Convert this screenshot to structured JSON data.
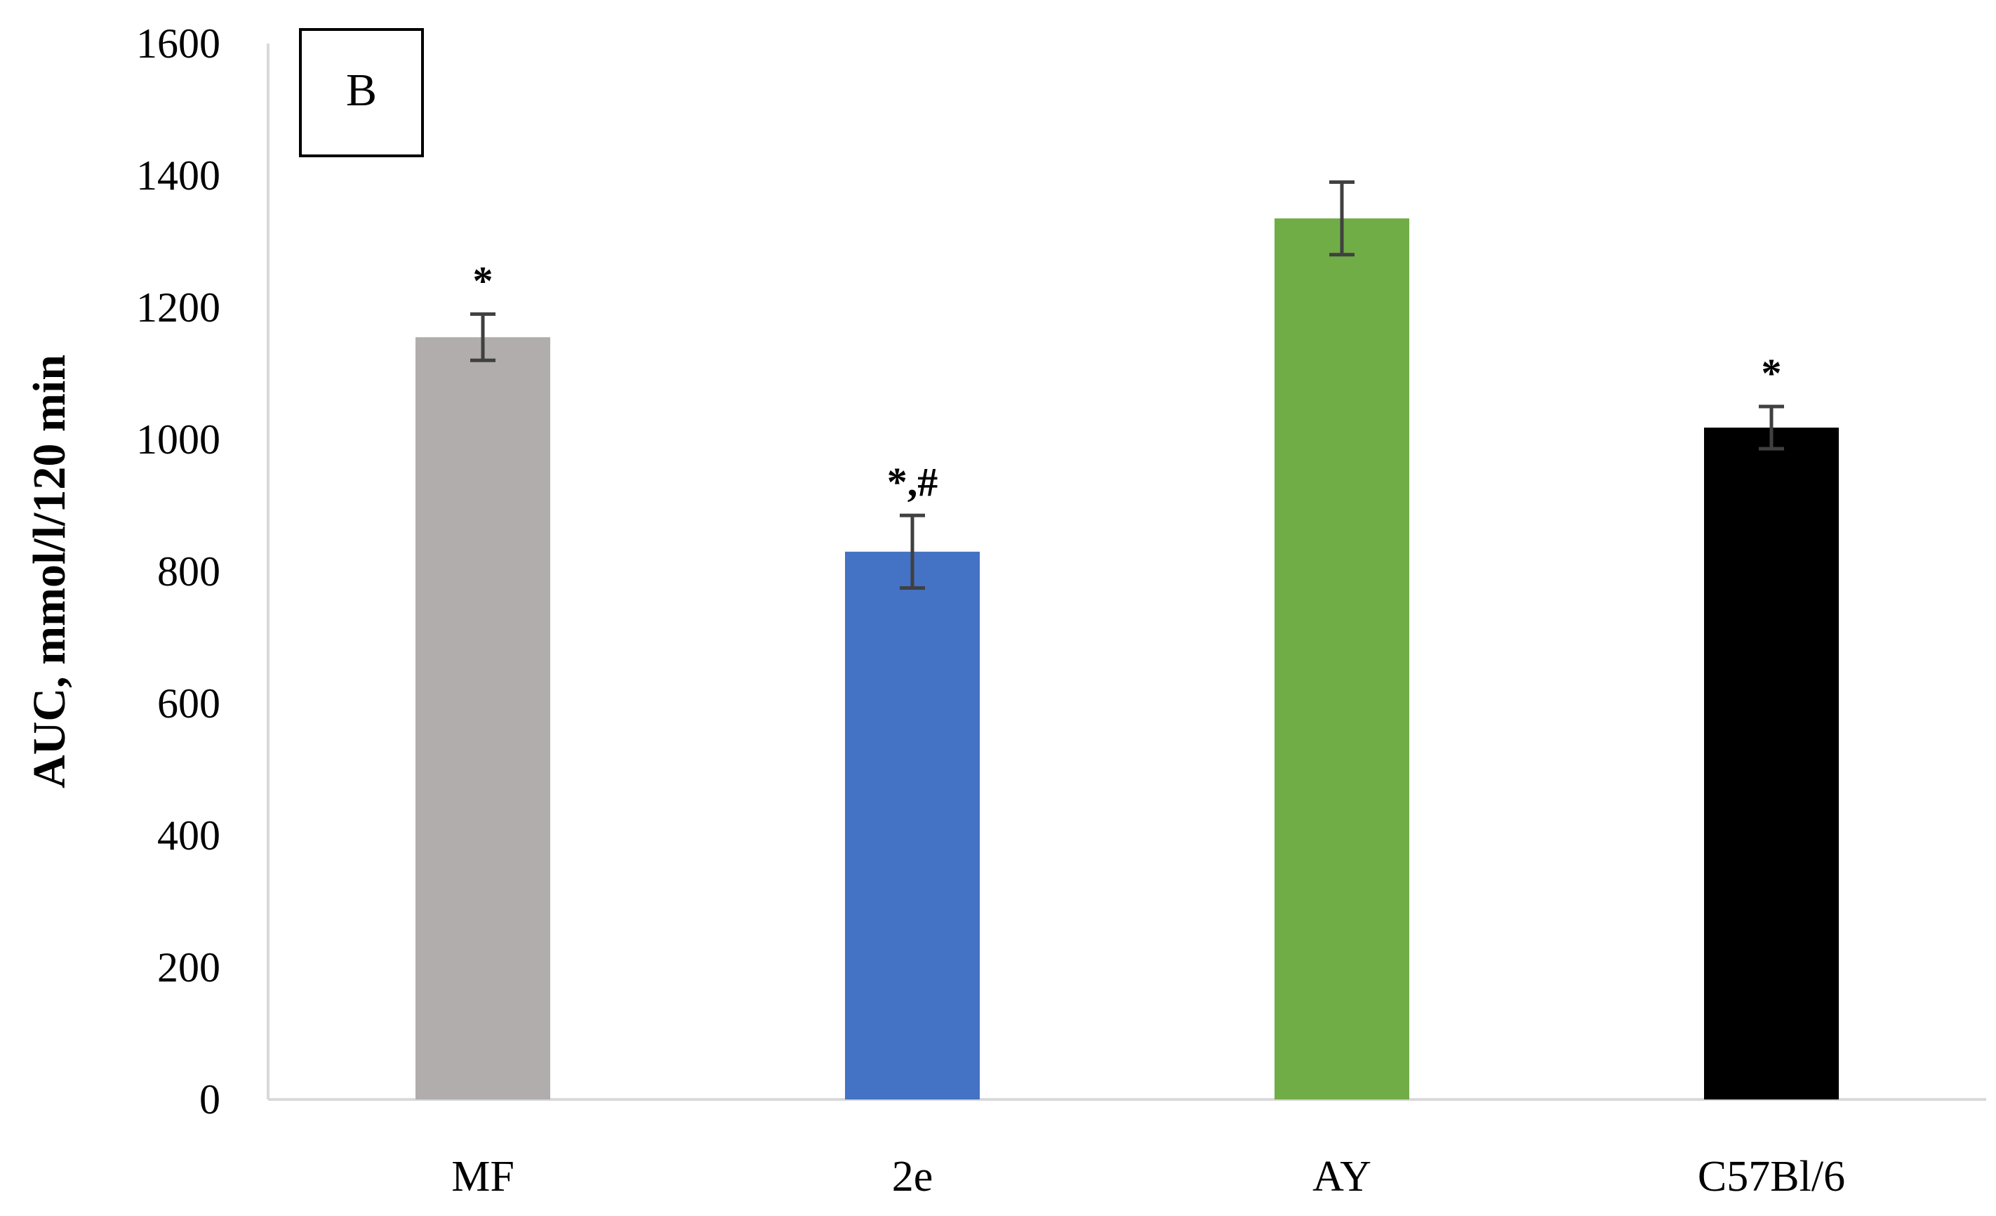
{
  "chart_data": {
    "type": "bar",
    "panel_label": "B",
    "ylabel": "AUC, mmol/l/120 min",
    "xlabel": "",
    "ylim": [
      0,
      1600
    ],
    "y_ticks": [
      0,
      200,
      400,
      600,
      800,
      1000,
      1200,
      1400,
      1600
    ],
    "grid": false,
    "categories": [
      "MF",
      "2e",
      "AY",
      "C57Bl/6"
    ],
    "values": [
      1155,
      830,
      1335,
      1018
    ],
    "errors": [
      35,
      55,
      55,
      32
    ],
    "annotations": [
      "*",
      "*,#",
      "",
      "*"
    ],
    "colors": [
      "#B0ADAC",
      "#4472C4",
      "#70AD47",
      "#000000"
    ]
  }
}
